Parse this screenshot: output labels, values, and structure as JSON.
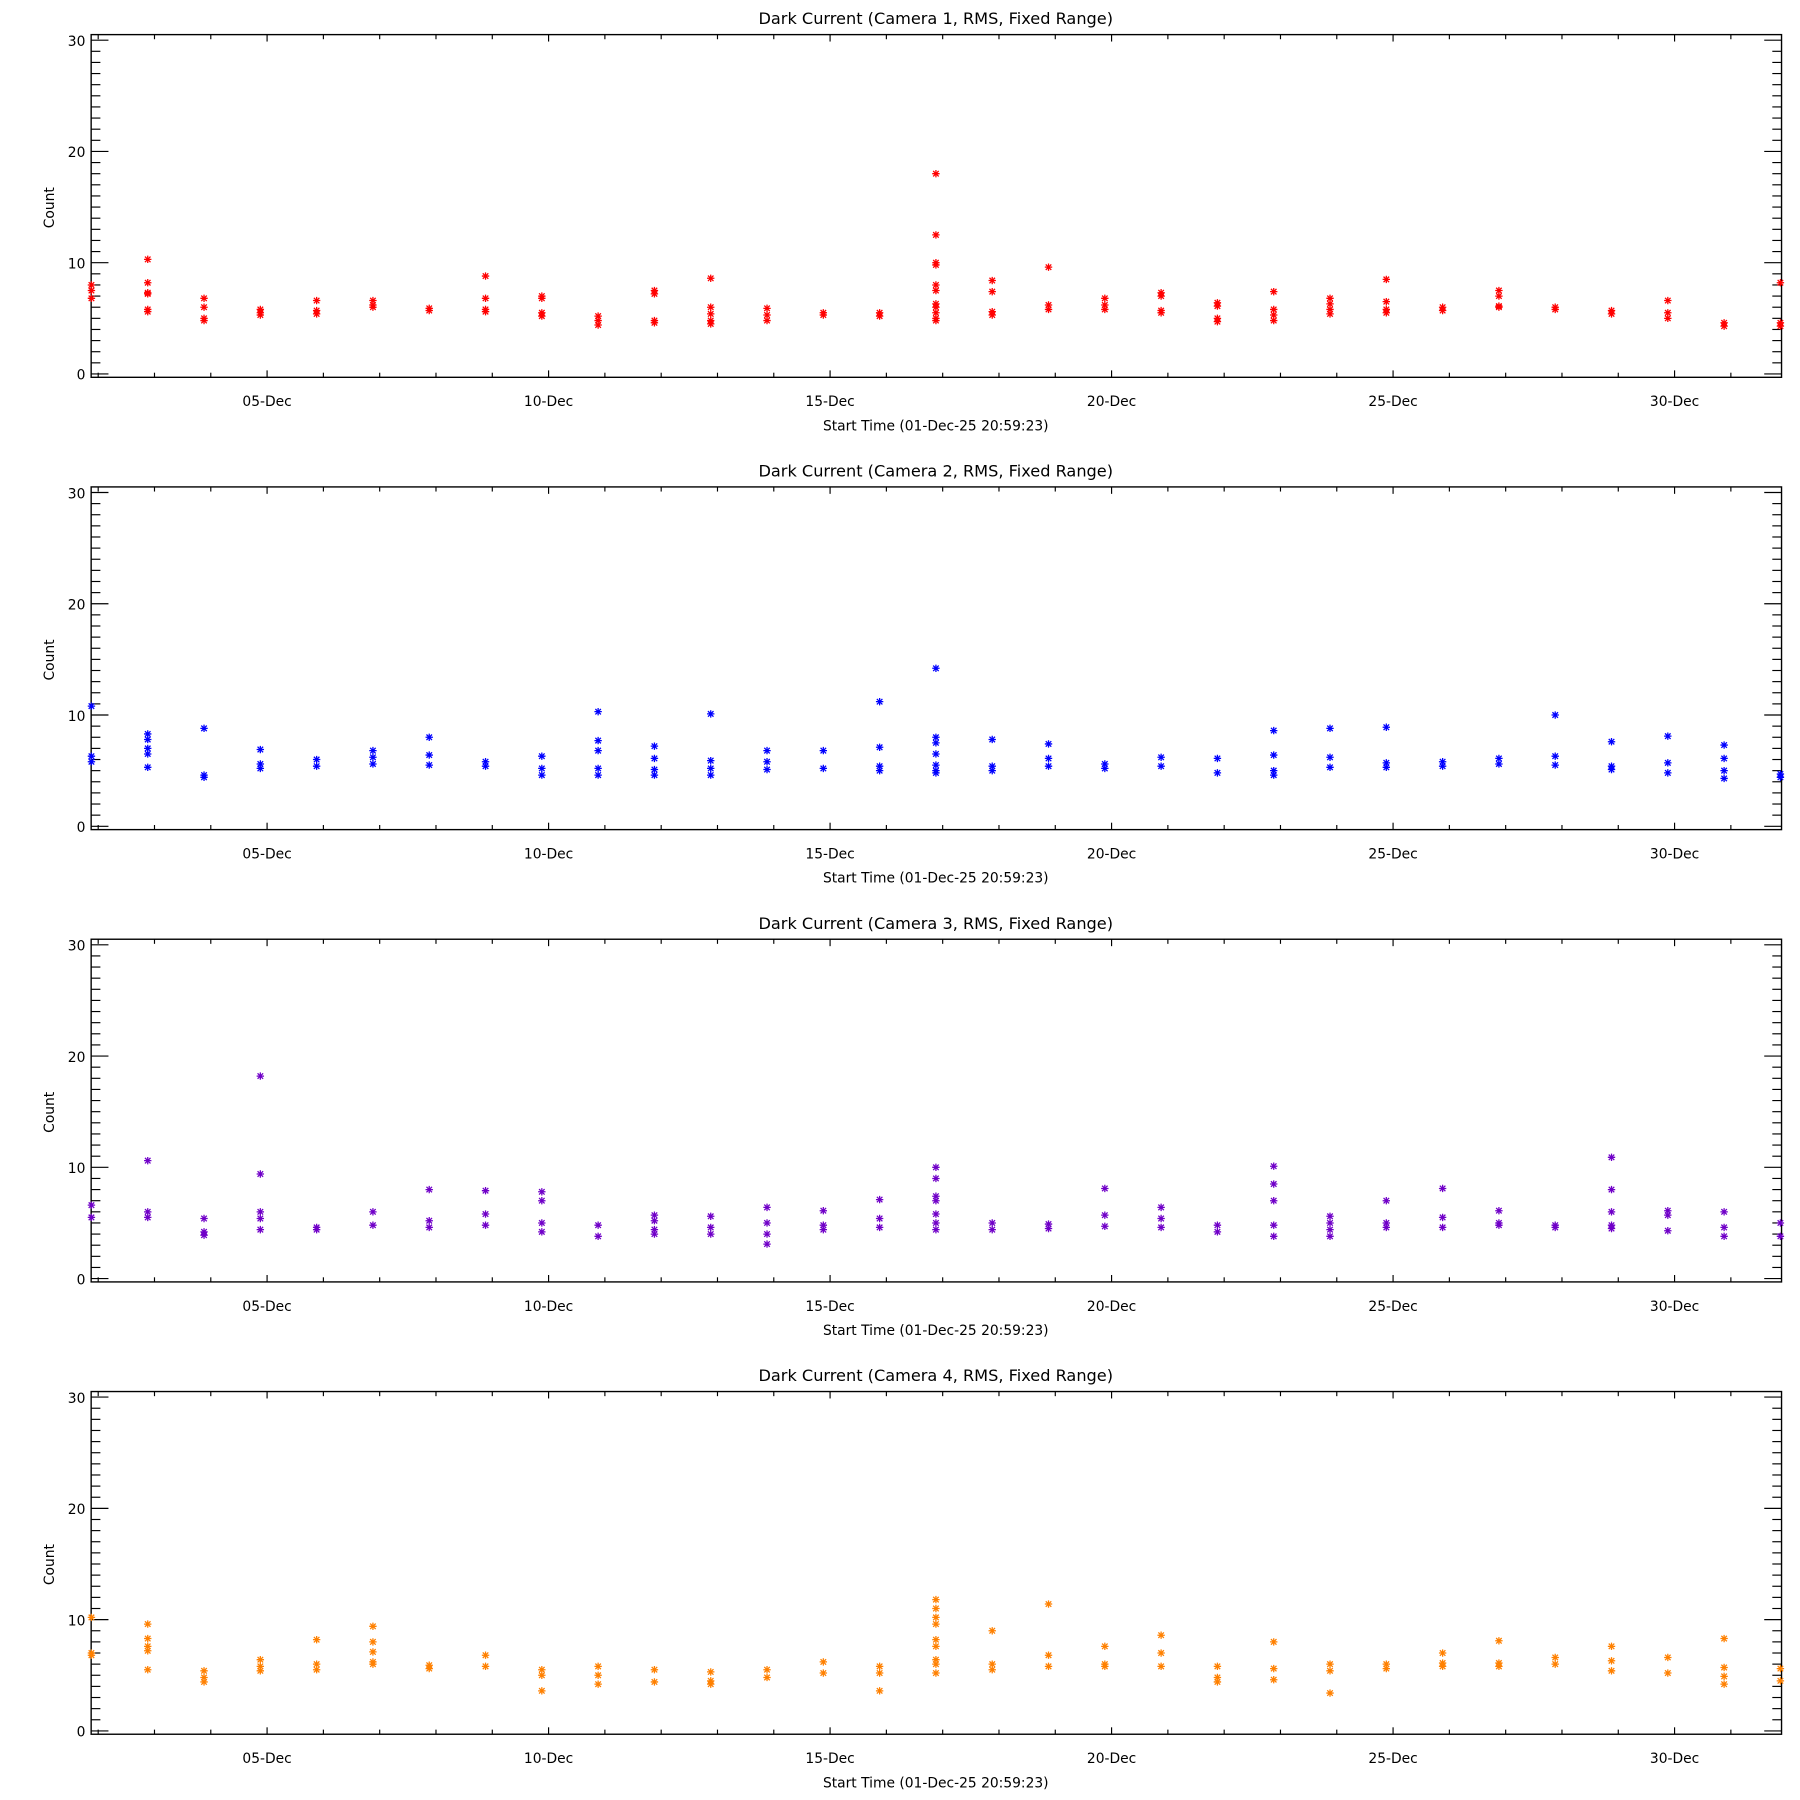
{
  "chart_data": [
    {
      "type": "scatter",
      "title": "Dark Current (Camera 1, RMS, Fixed Range)",
      "xlabel": "Start Time (01-Dec-25 20:59:23)",
      "ylabel": "Count",
      "color": "#ff0000",
      "xlim": [
        1.875,
        31.9
      ],
      "ylim": [
        -0.3,
        30.5
      ],
      "xticks": [
        {
          "day": 5,
          "label": "05-Dec"
        },
        {
          "day": 10,
          "label": "10-Dec"
        },
        {
          "day": 15,
          "label": "15-Dec"
        },
        {
          "day": 20,
          "label": "20-Dec"
        },
        {
          "day": 25,
          "label": "25-Dec"
        },
        {
          "day": 30,
          "label": "30-Dec"
        }
      ],
      "yticks": [
        {
          "value": 0,
          "label": "0"
        },
        {
          "value": 10,
          "label": "10"
        },
        {
          "value": 20,
          "label": "20"
        },
        {
          "value": 30,
          "label": "30"
        }
      ],
      "points_by_day": [
        [
          1.88,
          [
            6.8,
            7.5,
            8
          ]
        ],
        [
          2.88,
          [
            10.3,
            8.2,
            7.3,
            7.2,
            5.8,
            5.6
          ]
        ],
        [
          3.88,
          [
            6.8,
            6,
            5,
            4.8
          ]
        ],
        [
          4.88,
          [
            5.8,
            5.5,
            5.3
          ]
        ],
        [
          5.88,
          [
            6.6,
            5.7,
            5.4
          ]
        ],
        [
          6.88,
          [
            6.6,
            6.2,
            6
          ]
        ],
        [
          7.88,
          [
            5.9,
            5.7
          ]
        ],
        [
          8.88,
          [
            8.8,
            6.8,
            5.8,
            5.6
          ]
        ],
        [
          9.88,
          [
            7,
            6.8,
            5.5,
            5.2
          ]
        ],
        [
          10.88,
          [
            5.2,
            4.8,
            4.4
          ]
        ],
        [
          11.88,
          [
            7.5,
            7.2,
            4.8,
            4.6
          ]
        ],
        [
          12.88,
          [
            8.6,
            6,
            5.4,
            4.8,
            4.5
          ]
        ],
        [
          13.88,
          [
            5.9,
            5.3,
            4.8
          ]
        ],
        [
          14.88,
          [
            5.5,
            5.3
          ]
        ],
        [
          15.88,
          [
            5.5,
            5.2
          ]
        ],
        [
          16.88,
          [
            18,
            12.5,
            10,
            9.8,
            8,
            7.5,
            6.3,
            6,
            5.5,
            5,
            4.8
          ]
        ],
        [
          17.88,
          [
            8.4,
            7.4,
            5.6,
            5.3
          ]
        ],
        [
          18.88,
          [
            9.6,
            6.2,
            5.8
          ]
        ],
        [
          19.88,
          [
            6.8,
            6.2,
            5.8
          ]
        ],
        [
          20.88,
          [
            7.3,
            7,
            5.7,
            5.5
          ]
        ],
        [
          21.88,
          [
            6.4,
            6.1,
            5,
            4.7
          ]
        ],
        [
          22.88,
          [
            7.4,
            5.8,
            5.3,
            4.8
          ]
        ],
        [
          23.88,
          [
            6.8,
            6.3,
            5.8,
            5.4
          ]
        ],
        [
          24.88,
          [
            8.5,
            6.5,
            5.8,
            5.5
          ]
        ],
        [
          25.88,
          [
            6,
            5.7
          ]
        ],
        [
          26.88,
          [
            7.5,
            7,
            6.1,
            6
          ]
        ],
        [
          27.88,
          [
            6,
            5.8
          ]
        ],
        [
          28.88,
          [
            5.7,
            5.4
          ]
        ],
        [
          29.88,
          [
            6.6,
            5.5,
            5
          ]
        ],
        [
          30.88,
          [
            4.6,
            4.3
          ]
        ],
        [
          31.88,
          [
            8.2,
            4.6,
            4.3
          ]
        ]
      ]
    },
    {
      "type": "scatter",
      "title": "Dark Current (Camera 2, RMS, Fixed Range)",
      "xlabel": "Start Time (01-Dec-25 20:59:23)",
      "ylabel": "Count",
      "color": "#0000ff",
      "xlim": [
        1.875,
        31.9
      ],
      "ylim": [
        -0.3,
        30.5
      ],
      "xticks": [
        {
          "day": 5,
          "label": "05-Dec"
        },
        {
          "day": 10,
          "label": "10-Dec"
        },
        {
          "day": 15,
          "label": "15-Dec"
        },
        {
          "day": 20,
          "label": "20-Dec"
        },
        {
          "day": 25,
          "label": "25-Dec"
        },
        {
          "day": 30,
          "label": "30-Dec"
        }
      ],
      "yticks": [
        {
          "value": 0,
          "label": "0"
        },
        {
          "value": 10,
          "label": "10"
        },
        {
          "value": 20,
          "label": "20"
        },
        {
          "value": 30,
          "label": "30"
        }
      ],
      "points_by_day": [
        [
          1.88,
          [
            10.8,
            6.3,
            5.8
          ]
        ],
        [
          2.88,
          [
            8.3,
            7.8,
            7,
            6.5,
            5.3
          ]
        ],
        [
          3.88,
          [
            8.8,
            4.6,
            4.4
          ]
        ],
        [
          4.88,
          [
            6.9,
            5.6,
            5.2
          ]
        ],
        [
          5.88,
          [
            6,
            5.4
          ]
        ],
        [
          6.88,
          [
            6.8,
            6.2,
            5.6
          ]
        ],
        [
          7.88,
          [
            8,
            6.4,
            5.5
          ]
        ],
        [
          8.88,
          [
            5.8,
            5.4
          ]
        ],
        [
          9.88,
          [
            6.3,
            5.2,
            4.6
          ]
        ],
        [
          10.88,
          [
            10.3,
            7.7,
            6.8,
            5.2,
            4.6
          ]
        ],
        [
          11.88,
          [
            7.2,
            6.1,
            5.1,
            4.6
          ]
        ],
        [
          12.88,
          [
            10.1,
            5.9,
            5.2,
            4.6
          ]
        ],
        [
          13.88,
          [
            6.8,
            5.8,
            5.1
          ]
        ],
        [
          14.88,
          [
            6.8,
            5.2
          ]
        ],
        [
          15.88,
          [
            11.2,
            7.1,
            5.4,
            5
          ]
        ],
        [
          16.88,
          [
            14.2,
            8,
            7.5,
            6.5,
            5.5,
            5,
            4.8
          ]
        ],
        [
          17.88,
          [
            7.8,
            5.4,
            5
          ]
        ],
        [
          18.88,
          [
            7.4,
            6.1,
            5.4
          ]
        ],
        [
          19.88,
          [
            5.6,
            5.2
          ]
        ],
        [
          20.88,
          [
            6.2,
            5.4
          ]
        ],
        [
          21.88,
          [
            6.1,
            4.8
          ]
        ],
        [
          22.88,
          [
            8.6,
            6.4,
            5,
            4.6
          ]
        ],
        [
          23.88,
          [
            8.8,
            6.2,
            5.3
          ]
        ],
        [
          24.88,
          [
            8.9,
            5.7,
            5.3
          ]
        ],
        [
          25.88,
          [
            5.8,
            5.4
          ]
        ],
        [
          26.88,
          [
            6.1,
            5.6
          ]
        ],
        [
          27.88,
          [
            10,
            6.3,
            5.5
          ]
        ],
        [
          28.88,
          [
            7.6,
            5.4,
            5.1
          ]
        ],
        [
          29.88,
          [
            8.1,
            5.7,
            4.8
          ]
        ],
        [
          30.88,
          [
            7.3,
            6.1,
            5,
            4.3
          ]
        ],
        [
          31.88,
          [
            4.7,
            4.4
          ]
        ]
      ]
    },
    {
      "type": "scatter",
      "title": "Dark Current (Camera 3, RMS, Fixed Range)",
      "xlabel": "Start Time (01-Dec-25 20:59:23)",
      "ylabel": "Count",
      "color": "#7000c8",
      "xlim": [
        1.875,
        31.9
      ],
      "ylim": [
        -0.3,
        30.5
      ],
      "xticks": [
        {
          "day": 5,
          "label": "05-Dec"
        },
        {
          "day": 10,
          "label": "10-Dec"
        },
        {
          "day": 15,
          "label": "15-Dec"
        },
        {
          "day": 20,
          "label": "20-Dec"
        },
        {
          "day": 25,
          "label": "25-Dec"
        },
        {
          "day": 30,
          "label": "30-Dec"
        }
      ],
      "yticks": [
        {
          "value": 0,
          "label": "0"
        },
        {
          "value": 10,
          "label": "10"
        },
        {
          "value": 20,
          "label": "20"
        },
        {
          "value": 30,
          "label": "30"
        }
      ],
      "points_by_day": [
        [
          1.88,
          [
            6.6,
            5.5
          ]
        ],
        [
          2.88,
          [
            10.6,
            6,
            5.5
          ]
        ],
        [
          3.88,
          [
            5.4,
            4.2,
            3.9
          ]
        ],
        [
          4.88,
          [
            18.2,
            9.4,
            6,
            5.4,
            4.4
          ]
        ],
        [
          5.88,
          [
            4.6,
            4.4
          ]
        ],
        [
          6.88,
          [
            6,
            4.8
          ]
        ],
        [
          7.88,
          [
            8,
            5.2,
            4.6
          ]
        ],
        [
          8.88,
          [
            7.9,
            5.8,
            4.8
          ]
        ],
        [
          9.88,
          [
            7.8,
            7,
            5,
            4.2
          ]
        ],
        [
          10.88,
          [
            4.8,
            3.8
          ]
        ],
        [
          11.88,
          [
            5.7,
            5.2,
            4.4,
            4
          ]
        ],
        [
          12.88,
          [
            5.6,
            4.6,
            4
          ]
        ],
        [
          13.88,
          [
            6.4,
            5,
            4,
            3.1
          ]
        ],
        [
          14.88,
          [
            6.1,
            4.8,
            4.4
          ]
        ],
        [
          15.88,
          [
            7.1,
            5.4,
            4.6
          ]
        ],
        [
          16.88,
          [
            10,
            9,
            7.4,
            7,
            5.8,
            5,
            4.4
          ]
        ],
        [
          17.88,
          [
            5,
            4.4
          ]
        ],
        [
          18.88,
          [
            4.9,
            4.5
          ]
        ],
        [
          19.88,
          [
            8.1,
            5.7,
            4.7
          ]
        ],
        [
          20.88,
          [
            6.4,
            5.4,
            4.6
          ]
        ],
        [
          21.88,
          [
            4.8,
            4.2
          ]
        ],
        [
          22.88,
          [
            10.1,
            8.5,
            7,
            4.8,
            3.8
          ]
        ],
        [
          23.88,
          [
            5.6,
            5,
            4.4,
            3.8
          ]
        ],
        [
          24.88,
          [
            7,
            5,
            4.6
          ]
        ],
        [
          25.88,
          [
            8.1,
            5.5,
            4.6
          ]
        ],
        [
          26.88,
          [
            6.1,
            5,
            4.8
          ]
        ],
        [
          27.88,
          [
            4.8,
            4.6
          ]
        ],
        [
          28.88,
          [
            10.9,
            8,
            6,
            4.8,
            4.5
          ]
        ],
        [
          29.88,
          [
            6.1,
            5.7,
            4.3
          ]
        ],
        [
          30.88,
          [
            6,
            4.6,
            3.8
          ]
        ],
        [
          31.88,
          [
            5,
            3.8
          ]
        ]
      ]
    },
    {
      "type": "scatter",
      "title": "Dark Current (Camera 4, RMS, Fixed Range)",
      "xlabel": "Start Time (01-Dec-25 20:59:23)",
      "ylabel": "Count",
      "color": "#ff8000",
      "xlim": [
        1.875,
        31.9
      ],
      "ylim": [
        -0.3,
        30.5
      ],
      "xticks": [
        {
          "day": 5,
          "label": "05-Dec"
        },
        {
          "day": 10,
          "label": "10-Dec"
        },
        {
          "day": 15,
          "label": "15-Dec"
        },
        {
          "day": 20,
          "label": "20-Dec"
        },
        {
          "day": 25,
          "label": "25-Dec"
        },
        {
          "day": 30,
          "label": "30-Dec"
        }
      ],
      "yticks": [
        {
          "value": 0,
          "label": "0"
        },
        {
          "value": 10,
          "label": "10"
        },
        {
          "value": 20,
          "label": "20"
        },
        {
          "value": 30,
          "label": "30"
        }
      ],
      "points_by_day": [
        [
          1.88,
          [
            10.2,
            7,
            6.8
          ]
        ],
        [
          2.88,
          [
            9.6,
            8.3,
            7.6,
            7.2,
            5.5
          ]
        ],
        [
          3.88,
          [
            5.4,
            4.8,
            4.4
          ]
        ],
        [
          4.88,
          [
            6.4,
            5.8,
            5.4
          ]
        ],
        [
          5.88,
          [
            8.2,
            6,
            5.5
          ]
        ],
        [
          6.88,
          [
            9.4,
            8,
            7.1,
            6.2,
            6
          ]
        ],
        [
          7.88,
          [
            5.9,
            5.6
          ]
        ],
        [
          8.88,
          [
            6.8,
            5.8
          ]
        ],
        [
          9.88,
          [
            5.5,
            5,
            3.6
          ]
        ],
        [
          10.88,
          [
            5.8,
            5,
            4.2
          ]
        ],
        [
          11.88,
          [
            5.5,
            4.4
          ]
        ],
        [
          12.88,
          [
            5.3,
            4.5,
            4.2
          ]
        ],
        [
          13.88,
          [
            5.5,
            4.8
          ]
        ],
        [
          14.88,
          [
            6.2,
            5.2
          ]
        ],
        [
          15.88,
          [
            5.8,
            5.2,
            3.6
          ]
        ],
        [
          16.88,
          [
            11.8,
            11,
            10.2,
            9.6,
            8.2,
            7.6,
            6.4,
            6,
            5.2
          ]
        ],
        [
          17.88,
          [
            9,
            6,
            5.5
          ]
        ],
        [
          18.88,
          [
            11.4,
            6.8,
            5.8
          ]
        ],
        [
          19.88,
          [
            7.6,
            6,
            5.8
          ]
        ],
        [
          20.88,
          [
            8.6,
            7,
            5.8
          ]
        ],
        [
          21.88,
          [
            5.8,
            4.8,
            4.4
          ]
        ],
        [
          22.88,
          [
            8,
            5.6,
            4.6
          ]
        ],
        [
          23.88,
          [
            6,
            5.4,
            3.4
          ]
        ],
        [
          24.88,
          [
            6,
            5.6
          ]
        ],
        [
          25.88,
          [
            7,
            6.1,
            5.8
          ]
        ],
        [
          26.88,
          [
            8.1,
            6.1,
            5.8
          ]
        ],
        [
          27.88,
          [
            6.6,
            6
          ]
        ],
        [
          28.88,
          [
            7.6,
            6.3,
            5.4
          ]
        ],
        [
          29.88,
          [
            6.6,
            5.2
          ]
        ],
        [
          30.88,
          [
            8.3,
            5.7,
            4.9,
            4.2
          ]
        ],
        [
          31.88,
          [
            5.6,
            4.5
          ]
        ]
      ]
    }
  ]
}
